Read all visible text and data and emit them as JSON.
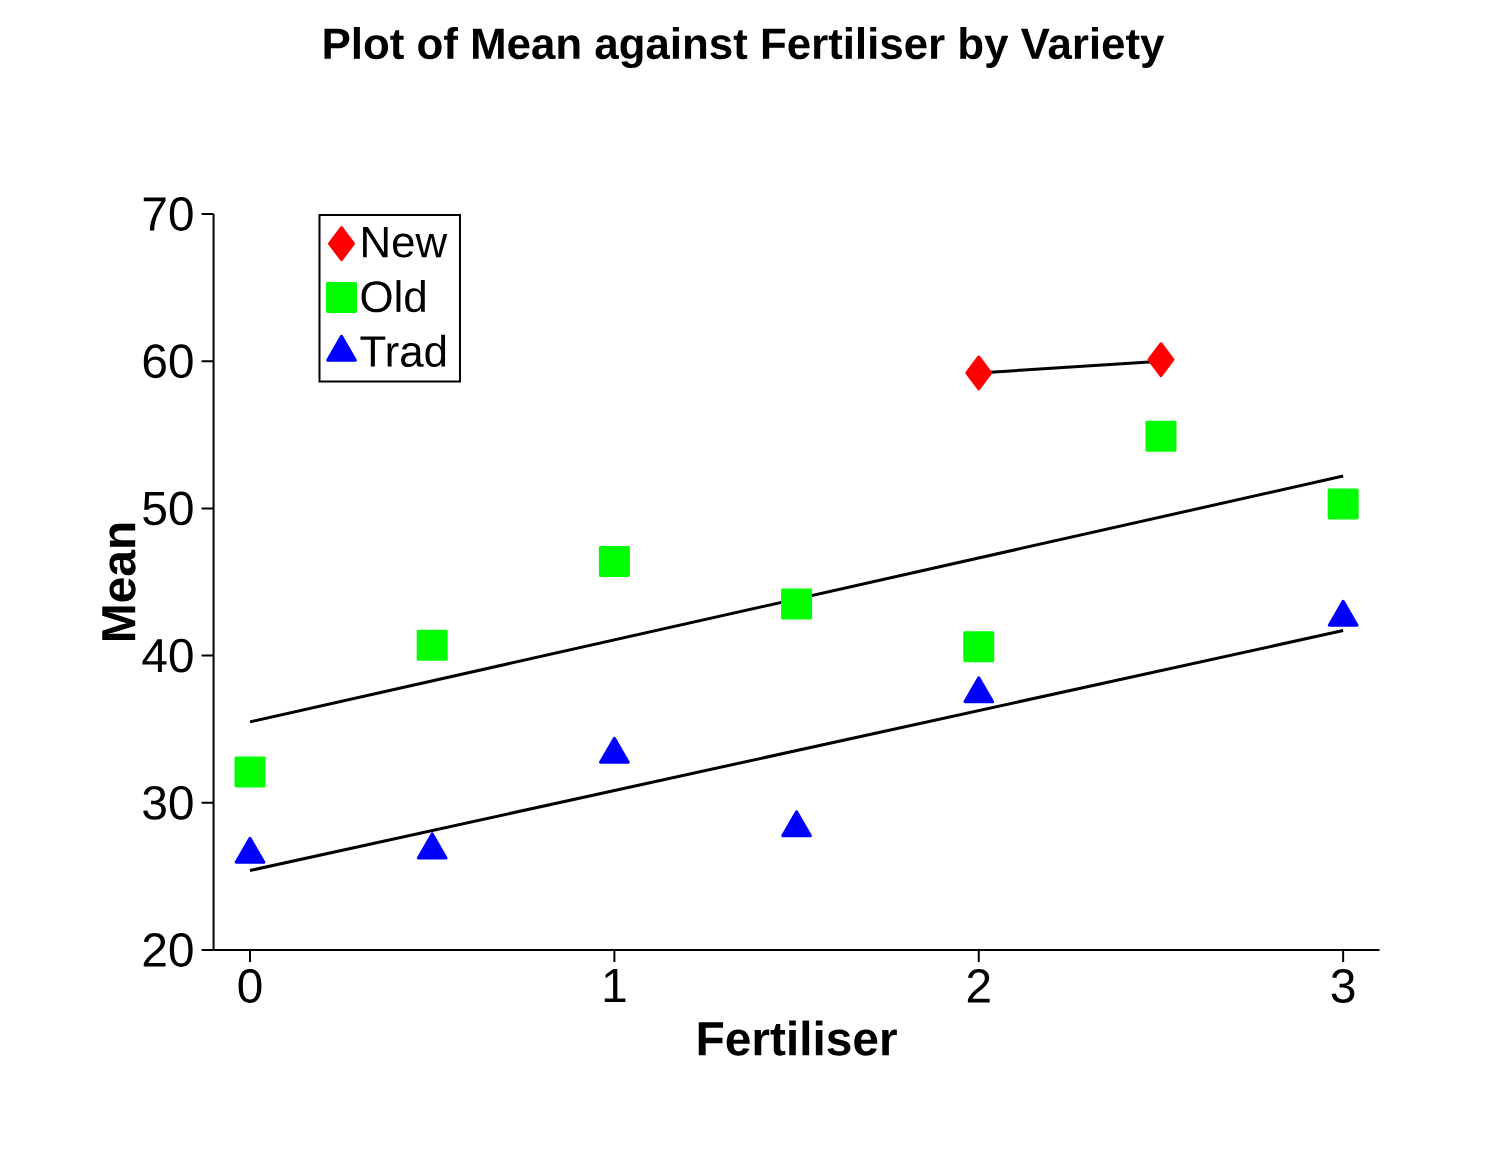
{
  "chart_data": {
    "type": "scatter",
    "title": "Plot of Mean against Fertiliser by Variety",
    "xlabel": "Fertiliser",
    "ylabel": "Mean",
    "xlim": [
      -0.1,
      3.1
    ],
    "ylim": [
      20,
      70
    ],
    "xticks": [
      0,
      1,
      2,
      3
    ],
    "yticks": [
      20,
      30,
      40,
      50,
      60,
      70
    ],
    "grid": false,
    "legend": "top left",
    "series": [
      {
        "name": "New",
        "color": "#ff0000",
        "marker": "diamond",
        "x": [
          2,
          2.5
        ],
        "values": [
          59.2,
          60.1
        ]
      },
      {
        "name": "Old",
        "color": "#00ff00",
        "marker": "square",
        "x": [
          0,
          0.5,
          1,
          1.5,
          2,
          2.5,
          3
        ],
        "values": [
          32.1,
          40.7,
          46.4,
          43.5,
          40.6,
          54.9,
          50.3
        ]
      },
      {
        "name": "Trad",
        "color": "#0000ff",
        "marker": "triangle",
        "x": [
          0,
          0.5,
          1,
          1.5,
          2,
          3
        ],
        "values": [
          26.5,
          26.8,
          33.3,
          28.3,
          37.4,
          42.6
        ]
      },
      {
        "type": "line",
        "color": "#000000",
        "marker": "none",
        "x": [
          2,
          2.5
        ],
        "values": [
          59.2,
          60.0
        ]
      },
      {
        "type": "line",
        "color": "#000000",
        "marker": "none",
        "x": [
          0,
          3
        ],
        "values": [
          35.5,
          52.2
        ]
      },
      {
        "type": "line",
        "color": "#000000",
        "marker": "none",
        "x": [
          0,
          3
        ],
        "values": [
          25.4,
          41.7
        ]
      }
    ]
  }
}
